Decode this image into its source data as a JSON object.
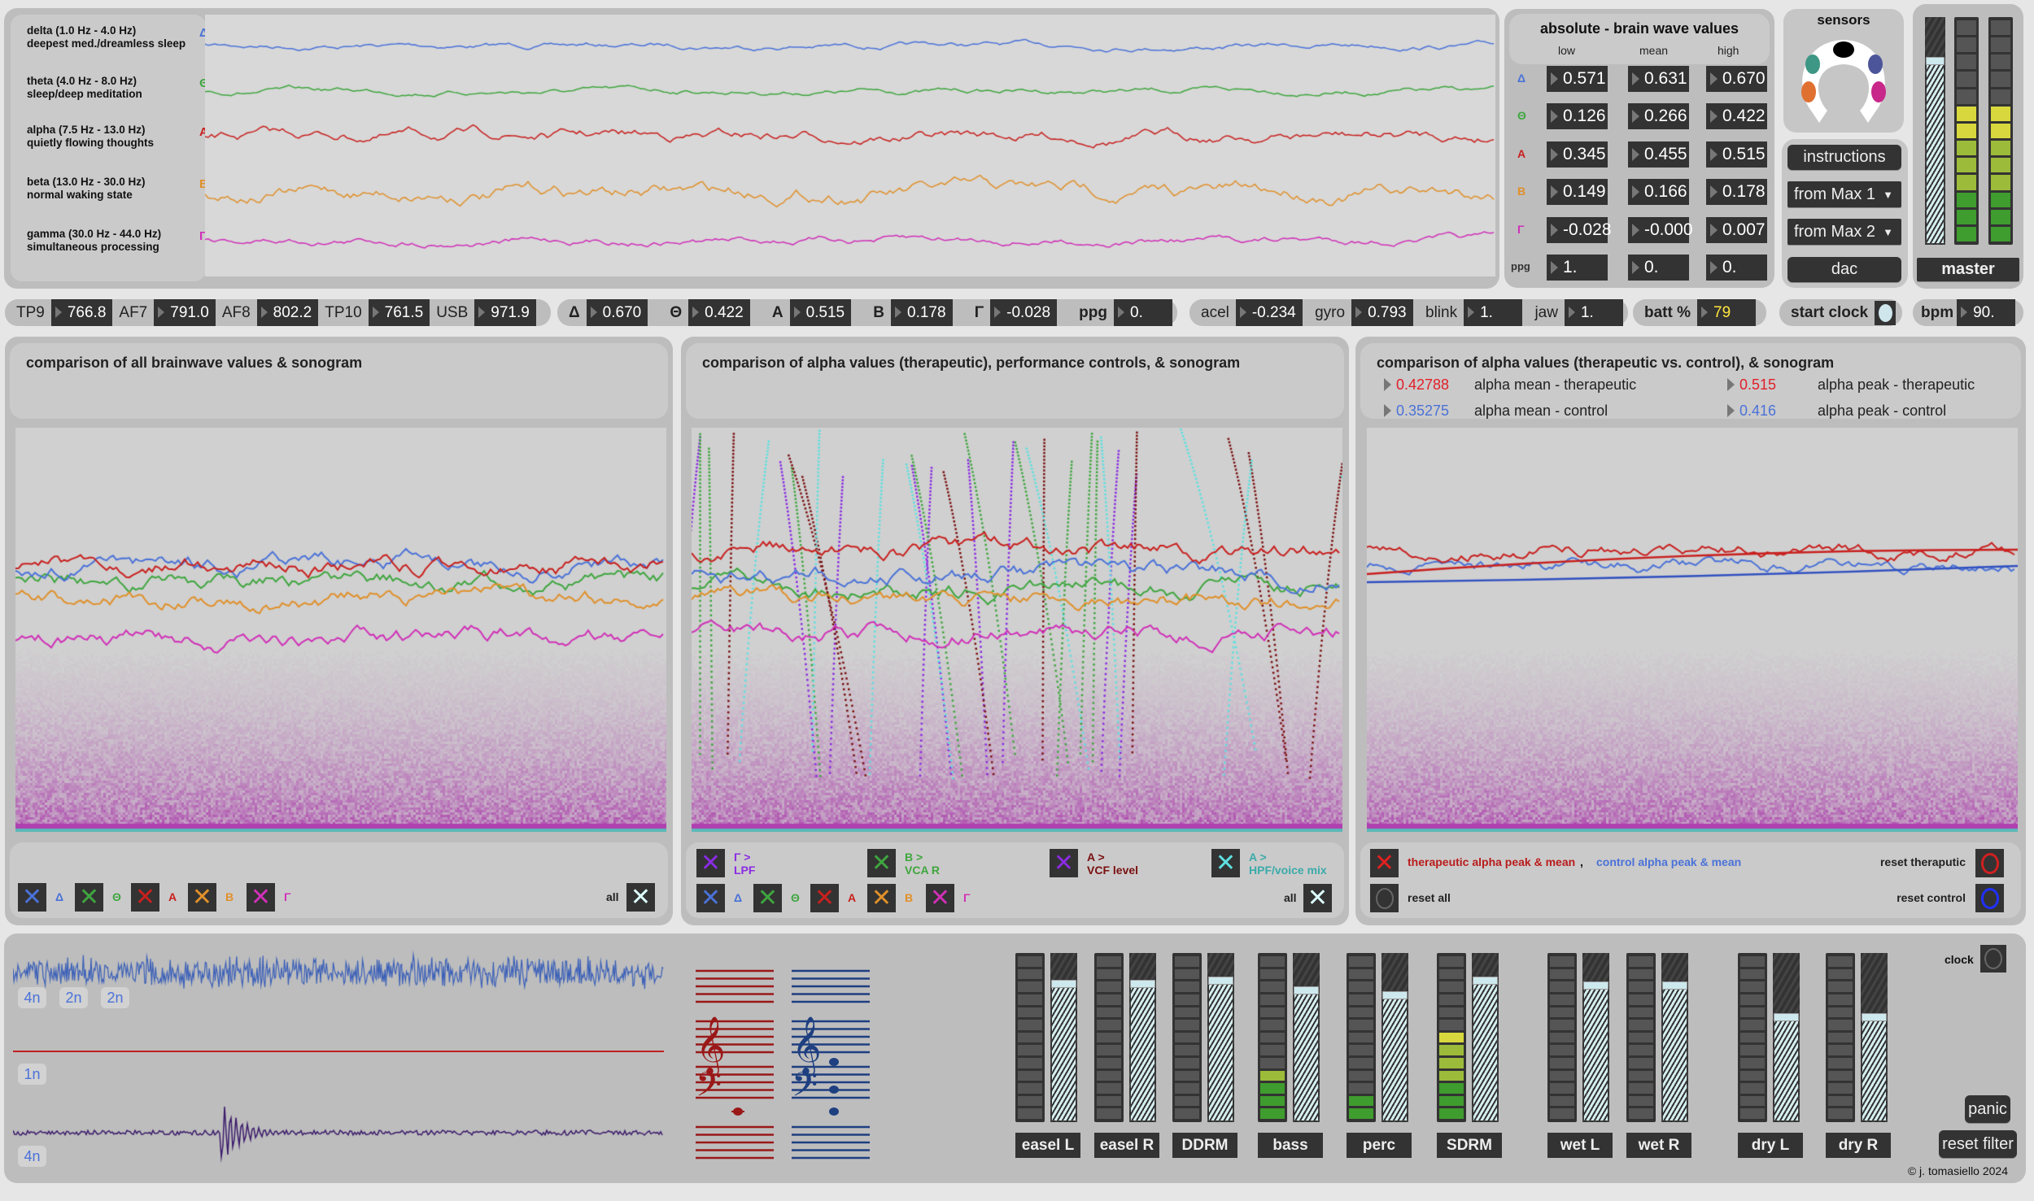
{
  "colors": {
    "delta": "#4a72d8",
    "theta": "#3fa63f",
    "alpha": "#c8201e",
    "beta": "#e0902a",
    "gamma": "#d030b8"
  },
  "bands": [
    {
      "title": "delta (1.0 Hz - 4.0 Hz)",
      "desc": "deepest med./dreamless sleep",
      "symbol": "Δ",
      "color": "#4a72d8"
    },
    {
      "title": "theta (4.0 Hz - 8.0 Hz)",
      "desc": "sleep/deep meditation",
      "symbol": "Θ",
      "color": "#3fa63f"
    },
    {
      "title": "alpha (7.5 Hz - 13.0 Hz)",
      "desc": "quietly flowing thoughts",
      "symbol": "A",
      "color": "#c8201e"
    },
    {
      "title": "beta (13.0 Hz - 30.0 Hz)",
      "desc": "normal waking state",
      "symbol": "B",
      "color": "#e0902a"
    },
    {
      "title": "gamma (30.0 Hz - 44.0 Hz)",
      "desc": "simultaneous processing",
      "symbol": "Γ",
      "color": "#d030b8"
    }
  ],
  "absolute": {
    "title": "absolute - brain wave values",
    "headers": [
      "low",
      "mean",
      "high"
    ],
    "rows": [
      {
        "symbol": "Δ",
        "color": "#4a72d8",
        "values": [
          "0.571",
          "0.631",
          "0.670"
        ]
      },
      {
        "symbol": "Θ",
        "color": "#3fa63f",
        "values": [
          "0.126",
          "0.266",
          "0.422"
        ]
      },
      {
        "symbol": "A",
        "color": "#c8201e",
        "values": [
          "0.345",
          "0.455",
          "0.515"
        ]
      },
      {
        "symbol": "B",
        "color": "#e0902a",
        "values": [
          "0.149",
          "0.166",
          "0.178"
        ]
      },
      {
        "symbol": "Γ",
        "color": "#d030b8",
        "values": [
          "-0.028",
          "-0.000",
          "0.007"
        ]
      },
      {
        "symbol": "ppg",
        "color": "#333333",
        "values": [
          "1.",
          "0.",
          "0."
        ]
      }
    ]
  },
  "sensors": {
    "title": "sensors"
  },
  "controls": {
    "instructions": "instructions",
    "from_max_1": "from Max 1",
    "from_max_2": "from Max 2",
    "dac": "dac"
  },
  "master": {
    "label": "master",
    "fader_level": 0.8,
    "meter_lit": 8
  },
  "readouts": {
    "electrodes": [
      {
        "label": "TP9",
        "value": "766.8"
      },
      {
        "label": "AF7",
        "value": "791.0"
      },
      {
        "label": "AF8",
        "value": "802.2"
      },
      {
        "label": "TP10",
        "value": "761.5"
      },
      {
        "label": "USB",
        "value": "971.9"
      }
    ],
    "bands": [
      {
        "label": "Δ",
        "value": "0.670"
      },
      {
        "label": "Θ",
        "value": "0.422"
      },
      {
        "label": "A",
        "value": "0.515"
      },
      {
        "label": "B",
        "value": "0.178"
      },
      {
        "label": "Γ",
        "value": "-0.028"
      },
      {
        "label": "ppg",
        "value": "0."
      }
    ],
    "motion": [
      {
        "label": "acel",
        "value": "-0.234"
      },
      {
        "label": "gyro",
        "value": "0.793"
      },
      {
        "label": "blink",
        "value": "1."
      },
      {
        "label": "jaw",
        "value": "1."
      }
    ],
    "batt": {
      "label": "batt %",
      "value": "79"
    },
    "start_clock": "start clock",
    "bpm": {
      "label": "bpm",
      "value": "90."
    }
  },
  "panels": [
    {
      "title": "comparison of all brainwave values & sonogram"
    },
    {
      "title": "comparison of alpha values (therapeutic), performance controls, & sonogram"
    },
    {
      "title": "comparison of alpha values (therapeutic vs. control), & sonogram",
      "stats": [
        {
          "value": "0.42788",
          "label": "alpha mean - therapeutic",
          "color": "#e0202a"
        },
        {
          "value": "0.515",
          "label": "alpha peak - therapeutic",
          "color": "#e0202a"
        },
        {
          "value": "0.35275",
          "label": "alpha mean - control",
          "color": "#4a72d8"
        },
        {
          "value": "0.416",
          "label": "alpha peak - control",
          "color": "#4a72d8"
        }
      ]
    }
  ],
  "toggles": {
    "bands": [
      {
        "symbol": "Δ",
        "color": "#4a72d8"
      },
      {
        "symbol": "Θ",
        "color": "#3fa63f"
      },
      {
        "symbol": "A",
        "color": "#c8201e"
      },
      {
        "symbol": "B",
        "color": "#e0902a"
      },
      {
        "symbol": "Γ",
        "color": "#d030b8"
      }
    ],
    "all": "all",
    "mappings": [
      {
        "line1": "Γ >",
        "line2": "LPF",
        "color": "#8a2be2",
        "xcolor": "#8a2be2"
      },
      {
        "line1": "B >",
        "line2": "VCA R",
        "color": "#3fa63f",
        "xcolor": "#3fa63f"
      },
      {
        "line1": "A >",
        "line2": "VCF level",
        "color": "#7a1010",
        "xcolor": "#8a2be2"
      },
      {
        "line1": "A >",
        "line2": "HPF/voice mix",
        "color": "#3aaaaa",
        "xcolor": "#5ee0e0"
      }
    ],
    "therapeutic_label": "therapeutic alpha peak & mean",
    "separator": ",",
    "control_label": "control alpha peak & mean",
    "reset_therapeutic": "reset theraputic",
    "reset_all": "reset all",
    "reset_control": "reset control"
  },
  "rhythm": {
    "buttons_top": [
      "4n",
      "2n",
      "2n"
    ],
    "button_mid": "1n",
    "button_bottom": "4n"
  },
  "mixer": {
    "strips": [
      {
        "label": "easel L",
        "level": 0.81,
        "lit": 0
      },
      {
        "label": "easel R",
        "level": 0.81,
        "lit": 0
      },
      {
        "label": "DDRM",
        "level": 0.83,
        "lit": 0
      },
      {
        "label": "bass",
        "level": 0.77,
        "lit": 4
      },
      {
        "label": "perc",
        "level": 0.74,
        "lit": 2
      },
      {
        "label": "SDRM",
        "level": 0.83,
        "lit": 7
      },
      {
        "label": "wet L",
        "level": 0.8,
        "lit": 0
      },
      {
        "label": "wet R",
        "level": 0.8,
        "lit": 0
      },
      {
        "label": "dry L",
        "level": 0.61,
        "lit": 0
      },
      {
        "label": "dry R",
        "level": 0.61,
        "lit": 0
      }
    ],
    "clock": "clock",
    "panic": "panic",
    "reset_filter": "reset filter",
    "copyright": "© j. tomasiello 2024"
  }
}
